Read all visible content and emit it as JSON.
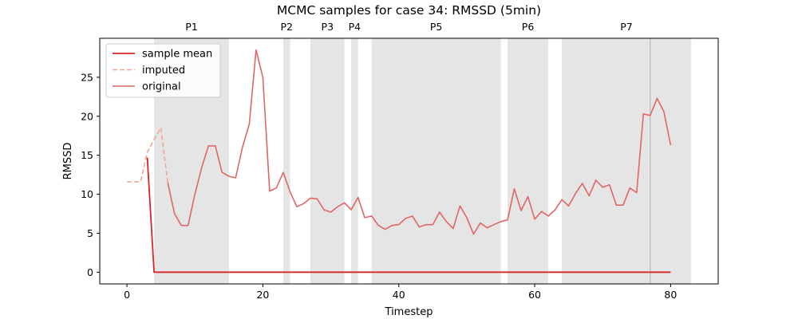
{
  "chart_data": {
    "type": "line",
    "title": "MCMC samples for case 34: RMSSD (5min)",
    "xlabel": "Timestep",
    "ylabel": "RMSSD",
    "xlim": [
      -4,
      87
    ],
    "ylim": [
      -1.5,
      30
    ],
    "xticks": [
      0,
      20,
      40,
      60,
      80
    ],
    "yticks": [
      0,
      5,
      10,
      15,
      20,
      25
    ],
    "grid": false,
    "legend_position": "top-left",
    "phases": [
      {
        "label": "P1",
        "start": 4,
        "end": 15
      },
      {
        "label": "P2",
        "start": 23,
        "end": 24
      },
      {
        "label": "P3",
        "start": 27,
        "end": 32
      },
      {
        "label": "P4",
        "start": 33,
        "end": 34
      },
      {
        "label": "P5",
        "start": 36,
        "end": 55
      },
      {
        "label": "P6",
        "start": 56,
        "end": 62
      },
      {
        "label": "P7",
        "start": 64,
        "end": 83
      }
    ],
    "vline_x": 77,
    "series": [
      {
        "name": "sample mean",
        "color": "#d62728",
        "style": "solid",
        "x": [
          3,
          4,
          80
        ],
        "y": [
          14.7,
          0,
          0
        ]
      },
      {
        "name": "imputed",
        "color": "#f0a898",
        "style": "dashed",
        "x": [
          0,
          1,
          2,
          3,
          4,
          5,
          6
        ],
        "y": [
          11.6,
          11.6,
          11.6,
          15.4,
          17.0,
          18.5,
          11.5
        ]
      },
      {
        "name": "original",
        "color": "#e06666",
        "style": "solid",
        "x": [
          6,
          7,
          8,
          9,
          10,
          11,
          12,
          13,
          14,
          15,
          16,
          17,
          18,
          19,
          20,
          21,
          22,
          23,
          24,
          25,
          26,
          27,
          28,
          29,
          30,
          31,
          32,
          33,
          34,
          35,
          36,
          37,
          38,
          39,
          40,
          41,
          42,
          43,
          44,
          45,
          46,
          47,
          48,
          49,
          50,
          51,
          52,
          53,
          54,
          55,
          56,
          57,
          58,
          59,
          60,
          61,
          62,
          63,
          64,
          65,
          66,
          67,
          68,
          69,
          70,
          71,
          72,
          73,
          74,
          75,
          76,
          77,
          78,
          79,
          80
        ],
        "y": [
          11.5,
          7.5,
          6.0,
          6.0,
          10.0,
          13.4,
          16.2,
          16.2,
          12.8,
          12.3,
          12.1,
          16.0,
          19.0,
          28.5,
          25.0,
          10.4,
          10.8,
          12.8,
          10.3,
          8.4,
          8.8,
          9.5,
          9.4,
          8.0,
          7.7,
          8.4,
          8.9,
          8.0,
          9.6,
          7.0,
          7.2,
          6.0,
          5.5,
          6.0,
          6.1,
          6.9,
          7.2,
          5.8,
          6.1,
          6.1,
          7.7,
          6.5,
          5.6,
          8.5,
          7.0,
          4.9,
          6.3,
          5.7,
          6.1,
          6.5,
          6.7,
          10.7,
          7.9,
          9.7,
          6.8,
          7.8,
          7.2,
          8.0,
          9.3,
          8.5,
          10.1,
          11.4,
          9.8,
          11.8,
          10.9,
          11.2,
          8.6,
          8.6,
          10.8,
          10.2,
          20.3,
          20.1,
          22.3,
          20.6,
          16.3
        ]
      }
    ]
  }
}
